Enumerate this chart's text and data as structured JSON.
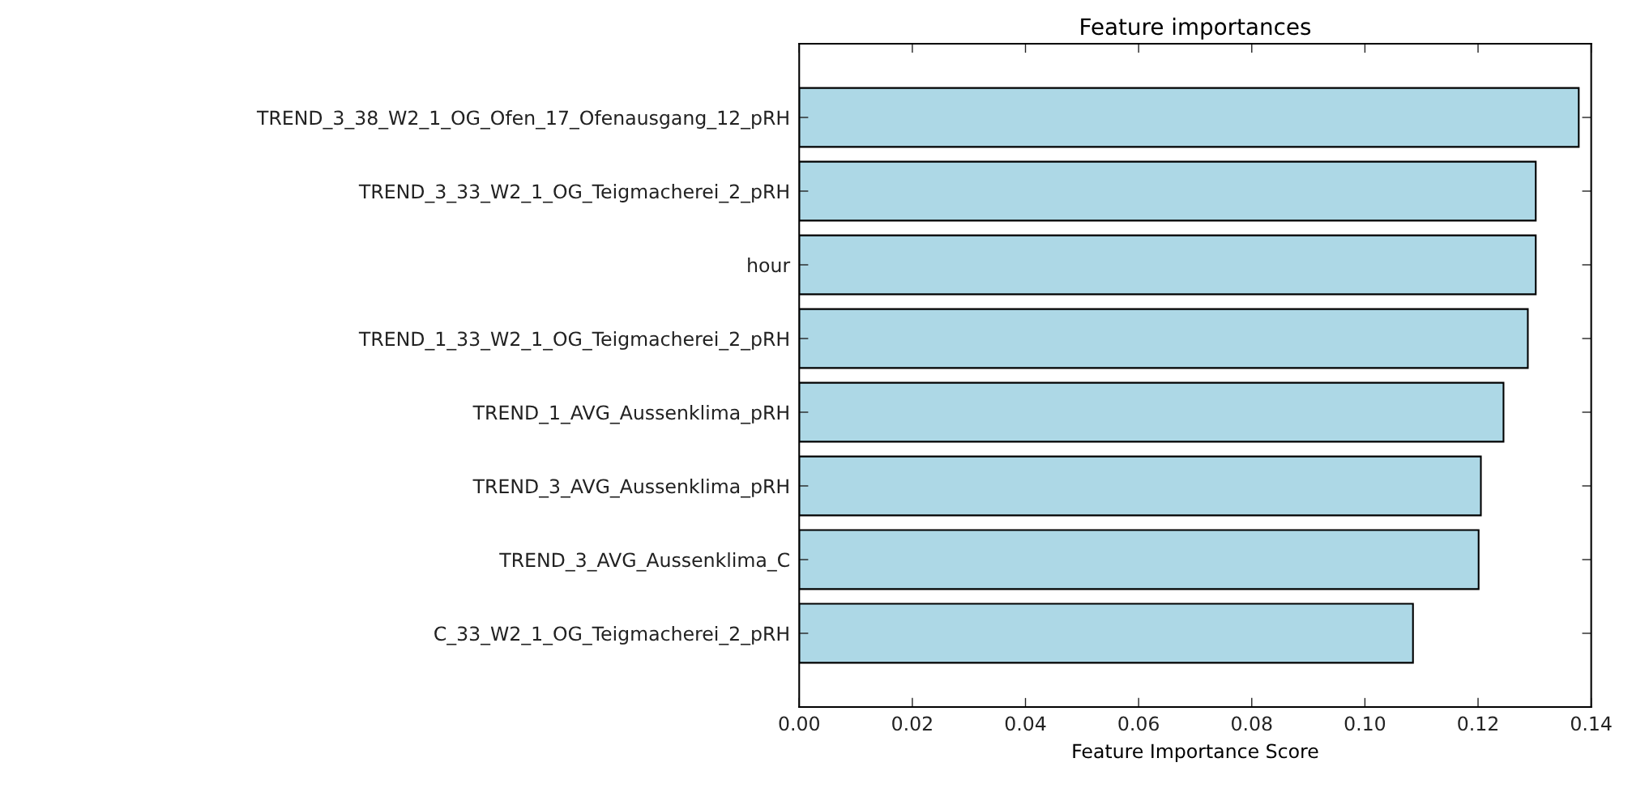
{
  "chart_data": {
    "type": "bar",
    "orientation": "horizontal",
    "title": "Feature importances",
    "xlabel": "Feature Importance Score",
    "categories": [
      "TREND_3_38_W2_1_OG_Ofen_17_Ofenausgang_12_pRH",
      "TREND_3_33_W2_1_OG_Teigmacherei_2_pRH",
      "hour",
      "TREND_1_33_W2_1_OG_Teigmacherei_2_pRH",
      "TREND_1_AVG_Aussenklima_pRH",
      "TREND_3_AVG_Aussenklima_pRH",
      "TREND_3_AVG_Aussenklima_C",
      "C_33_W2_1_OG_Teigmacherei_2_pRH"
    ],
    "values": [
      0.1378,
      0.1302,
      0.1302,
      0.1288,
      0.1245,
      0.1205,
      0.1201,
      0.1085
    ],
    "color": "#add8e6",
    "xlim": [
      0,
      0.14
    ],
    "xticks": [
      {
        "value": 0,
        "label": "0.00"
      },
      {
        "value": 0.02,
        "label": "0.02"
      },
      {
        "value": 0.04,
        "label": "0.04"
      },
      {
        "value": 0.06,
        "label": "0.06"
      },
      {
        "value": 0.08,
        "label": "0.08"
      },
      {
        "value": 0.1,
        "label": "0.10"
      },
      {
        "value": 0.12,
        "label": "0.12"
      },
      {
        "value": 0.14,
        "label": "0.14"
      }
    ],
    "grid": false
  }
}
